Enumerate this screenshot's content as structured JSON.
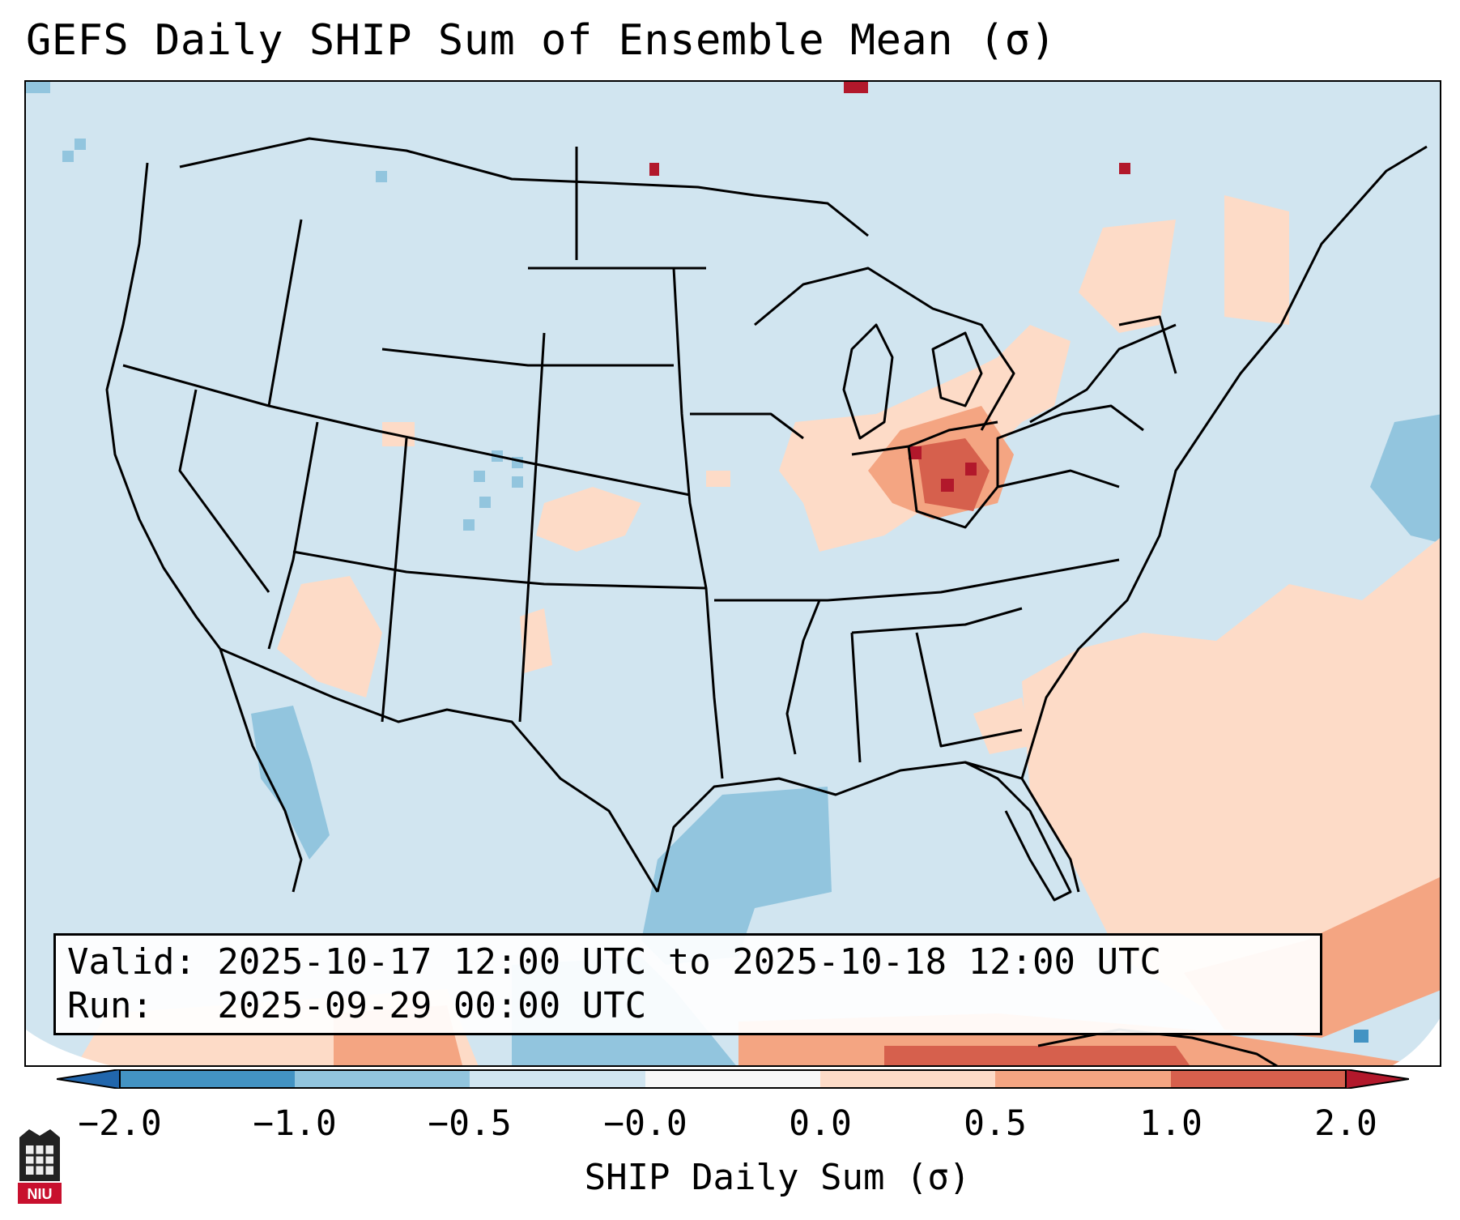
{
  "title": "GEFS Daily SHIP Sum of Ensemble Mean (σ)",
  "valid_line": "Valid: 2025-10-17 12:00 UTC to 2025-10-18 12:00 UTC",
  "run_line": "Run:   2025-09-29 00:00 UTC",
  "colorbar": {
    "label": "SHIP Daily Sum (σ)",
    "ticks": [
      "−2.0",
      "−1.0",
      "−0.5",
      "−0.0",
      "0.0",
      "0.5",
      "1.0",
      "2.0"
    ],
    "colors": {
      "lt_-2": "#2166ac",
      "-2_-1": "#4393c3",
      "-1_-0.5": "#92c5de",
      "-0.5_0": "#d1e5f0",
      "0_0.5": "#fddbc7",
      "0.5_1": "#f4a582",
      "1_2": "#d6604d",
      "gt_2": "#b2182b"
    }
  },
  "logo": {
    "text": "NIU",
    "icon": "university-seal-icon"
  }
}
